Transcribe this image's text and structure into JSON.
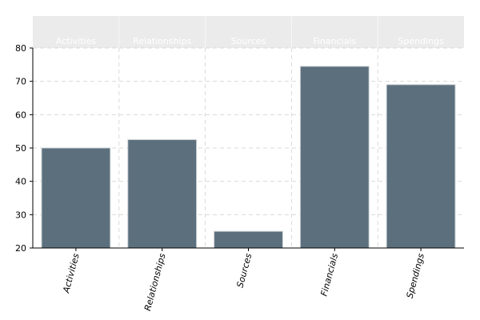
{
  "chart_data": {
    "type": "bar",
    "title": "",
    "xlabel": "",
    "ylabel": "",
    "categories": [
      "Activities",
      "Relationships",
      "Sources",
      "Financials",
      "Spendings"
    ],
    "values": [
      50,
      52.5,
      25,
      74.5,
      69
    ],
    "ylim": [
      20,
      80
    ],
    "yticks": [
      20,
      30,
      40,
      50,
      60,
      70,
      80
    ],
    "grid": true,
    "legend": "none",
    "facet_strip_labels": [
      "Activities",
      "Relationships",
      "Sources",
      "Financials",
      "Spendings"
    ],
    "colors": {
      "bar": "#5c6f7c",
      "strip": "#ebebeb",
      "grid": "#d9d9d9",
      "axis": "#000000",
      "background": "#ffffff"
    }
  }
}
